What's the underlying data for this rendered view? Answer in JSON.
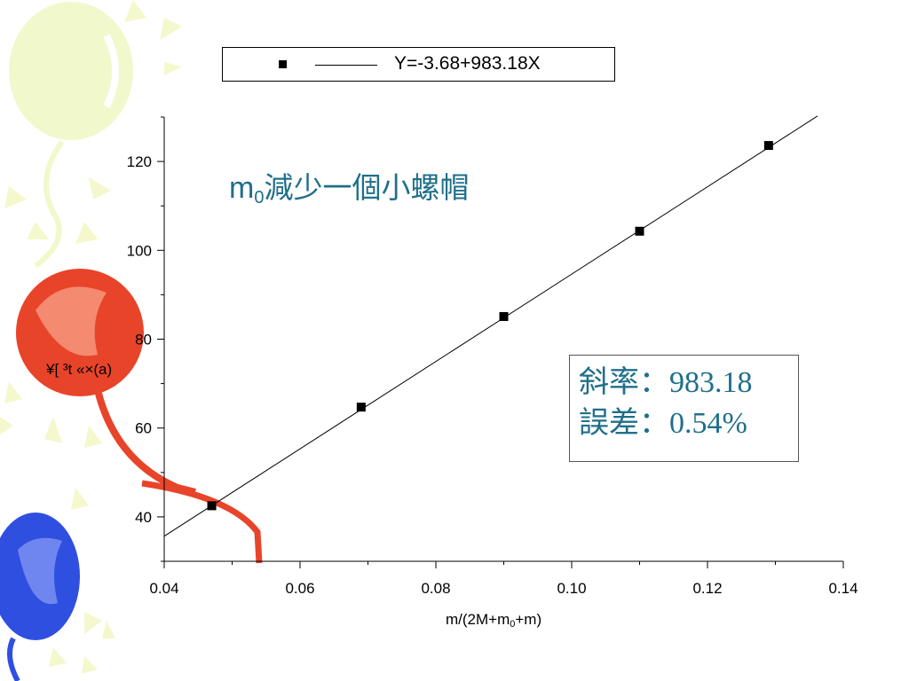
{
  "legend": {
    "entry": "Y=-3.68+983.18X"
  },
  "title": {
    "main": "m",
    "subscript": "0",
    "rest": "減少一個小螺帽"
  },
  "info": {
    "slope_label": "斜率：",
    "slope_value": "983.18",
    "error_label": "誤差：",
    "error_value": "0.54%"
  },
  "axes": {
    "ylabel": "¥[ ³t «×(a)",
    "xlabel_pre": "m/(2M+m",
    "xlabel_sub": "0",
    "xlabel_post": "+m)"
  },
  "colors": {
    "accent": "#1f6f8b",
    "balloon_red": "#e8442a",
    "balloon_blue": "#2f4fe0",
    "balloon_yellow": "#f0f7c8"
  },
  "chart_data": {
    "type": "scatter",
    "x_ticks": [
      "0.04",
      "0.06",
      "0.08",
      "0.10",
      "0.12",
      "0.14"
    ],
    "y_ticks": [
      "40",
      "60",
      "80",
      "100",
      "120"
    ],
    "xlim": [
      0.04,
      0.14
    ],
    "ylim": [
      30,
      130
    ],
    "series": [
      {
        "name": "Y=-3.68+983.18X",
        "x": [
          0.047,
          0.069,
          0.09,
          0.11,
          0.129
        ],
        "y": [
          42.5,
          64.7,
          85.1,
          104.3,
          123.6
        ]
      }
    ],
    "fit": {
      "intercept": -3.68,
      "slope": 983.18,
      "x_range": [
        0.04,
        0.1362
      ]
    }
  }
}
